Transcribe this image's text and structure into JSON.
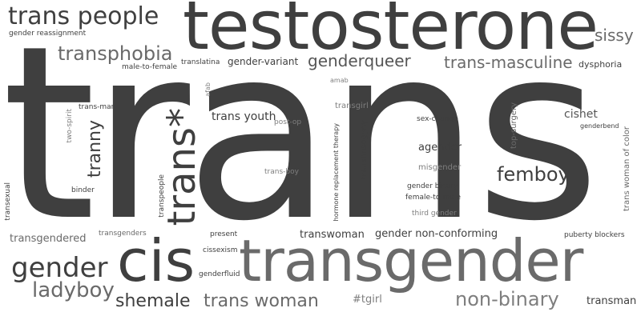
{
  "words": {
    "trans": "trans",
    "testosterone": "testosterone",
    "transgender": "transgender",
    "cis": "cis",
    "trans_star": "trans*",
    "trans_people": "trans people",
    "transphobia": "transphobia",
    "genderqueer": "genderqueer",
    "trans_masculine": "trans-masculine",
    "sissy": "sissy",
    "dysphoria": "dysphoria",
    "gender_reassignment": "gender reassignment",
    "male_to_female": "male-to-female",
    "translatina": "translatina",
    "gender_variant": "gender-variant",
    "amab": "amab",
    "afab": "afab",
    "transgirl": "transgirl",
    "trans_man": "trans-man",
    "two_spirit": "two-spirit",
    "tranny": "tranny",
    "trans_youth": "trans youth",
    "post_op": "post-op",
    "hrt": "hormone replacement therapy",
    "transmisogyny": "transmisogyny",
    "sex_change": "sex-change",
    "top_surgery": "top-surgery",
    "cishet": "cishet",
    "genderbend": "genderbend",
    "trans_woman_of_color": "trans woman of color",
    "agender": "agender",
    "misgender": "misgender",
    "femboy": "femboy",
    "trans_boy": "trans-boy",
    "gender_binary": "gender binary",
    "female_to_male": "female-to-male",
    "third_gender": "third gender",
    "transpeople": "transpeople",
    "transexual": "transexual",
    "binder": "binder",
    "transgendered": "transgendered",
    "transgenders": "transgenders",
    "present": "present",
    "transwoman": "transwoman",
    "gender_non_conforming": "gender non-conforming",
    "puberty_blockers": "puberty blockers",
    "cissexism": "cissexism",
    "genderfluid": "genderfluid",
    "gender": "gender",
    "ladyboy": "ladyboy",
    "shemale": "shemale",
    "trans_woman": "trans woman",
    "tgirl": "#tgirl",
    "non_binary": "non-binary",
    "transman": "transman"
  }
}
